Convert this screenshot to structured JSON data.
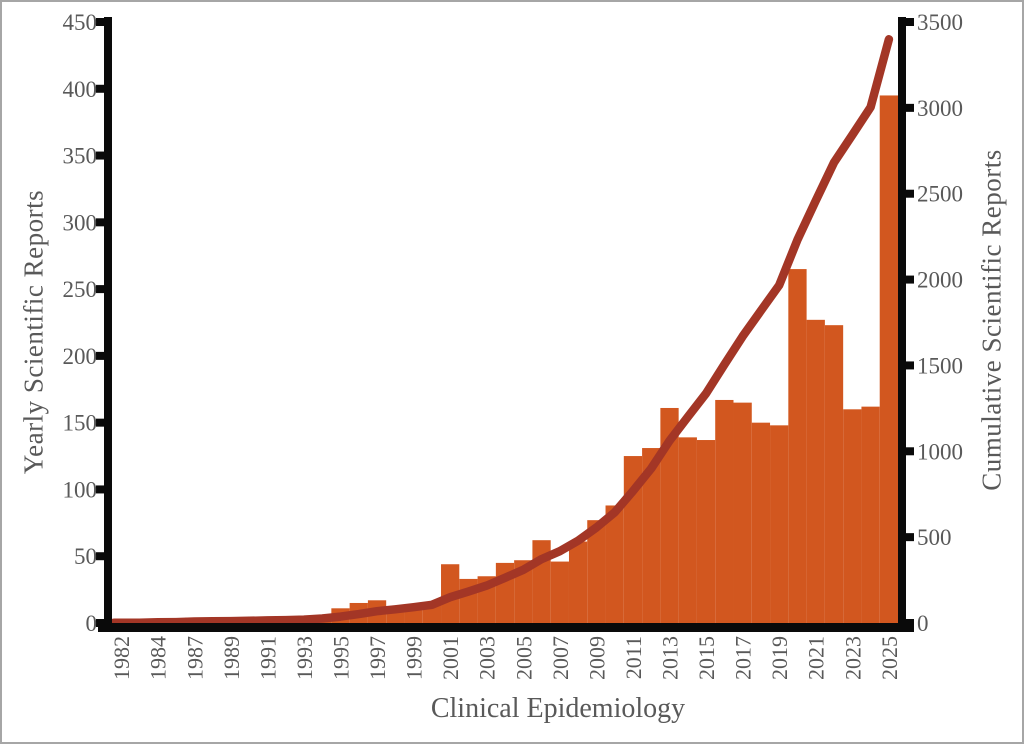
{
  "chart_data": {
    "type": "bar",
    "combo": "bar + line (dual axis)",
    "title": "Clinical Epidemiology",
    "left_axis": {
      "label": "Yearly Scientific Reports",
      "min": 0,
      "max": 450,
      "step": 50,
      "ticks": [
        0,
        50,
        100,
        150,
        200,
        250,
        300,
        350,
        400,
        450
      ]
    },
    "right_axis": {
      "label": "Cumulative Scientific Reports",
      "min": 0,
      "max": 3500,
      "step": 500,
      "ticks": [
        0,
        500,
        1000,
        1500,
        2000,
        2500,
        3000,
        3500
      ]
    },
    "categories": [
      1982,
      1983,
      1984,
      1986,
      1987,
      1988,
      1989,
      1990,
      1991,
      1992,
      1993,
      1994,
      1995,
      1996,
      1997,
      1998,
      1999,
      2000,
      2001,
      2002,
      2003,
      2004,
      2005,
      2006,
      2007,
      2008,
      2009,
      2010,
      2011,
      2012,
      2013,
      2014,
      2015,
      2016,
      2017,
      2018,
      2019,
      2020,
      2021,
      2022,
      2023,
      2024,
      2025
    ],
    "x_tick_labels_shown": [
      "1982",
      "1984",
      "1987",
      "1989",
      "1991",
      "1993",
      "1995",
      "1997",
      "1999",
      "2001",
      "2003",
      "2005",
      "2007",
      "2009",
      "2011",
      "2013",
      "2015",
      "2017",
      "2019",
      "2021",
      "2023",
      "2025"
    ],
    "series": [
      {
        "name": "Yearly Scientific Reports",
        "type": "bar",
        "axis": "left",
        "color": "#D2571F",
        "values": [
          1,
          1,
          2,
          1,
          4,
          1,
          1,
          2,
          2,
          2,
          3,
          6,
          11,
          15,
          17,
          11,
          12,
          14,
          44,
          33,
          35,
          45,
          47,
          62,
          46,
          61,
          77,
          88,
          125,
          131,
          161,
          139,
          137,
          167,
          165,
          150,
          148,
          265,
          227,
          223,
          160,
          162,
          395
        ]
      },
      {
        "name": "Cumulative Scientific Reports",
        "type": "line",
        "axis": "right",
        "color": "#A33626",
        "values": [
          1,
          2,
          4,
          5,
          9,
          10,
          11,
          13,
          15,
          17,
          20,
          26,
          37,
          52,
          69,
          80,
          92,
          106,
          150,
          183,
          218,
          263,
          310,
          372,
          418,
          479,
          556,
          644,
          769,
          900,
          1061,
          1200,
          1337,
          1504,
          1669,
          1819,
          1967,
          2232,
          2459,
          2682,
          2842,
          3004,
          3399
        ]
      }
    ],
    "grid": "off",
    "legend": "none",
    "axis_line_color": "#0a0a0a",
    "tick_label_color": "#595959"
  },
  "frame": {
    "background": "#ffffff",
    "border_color": "#a6a6a6"
  }
}
